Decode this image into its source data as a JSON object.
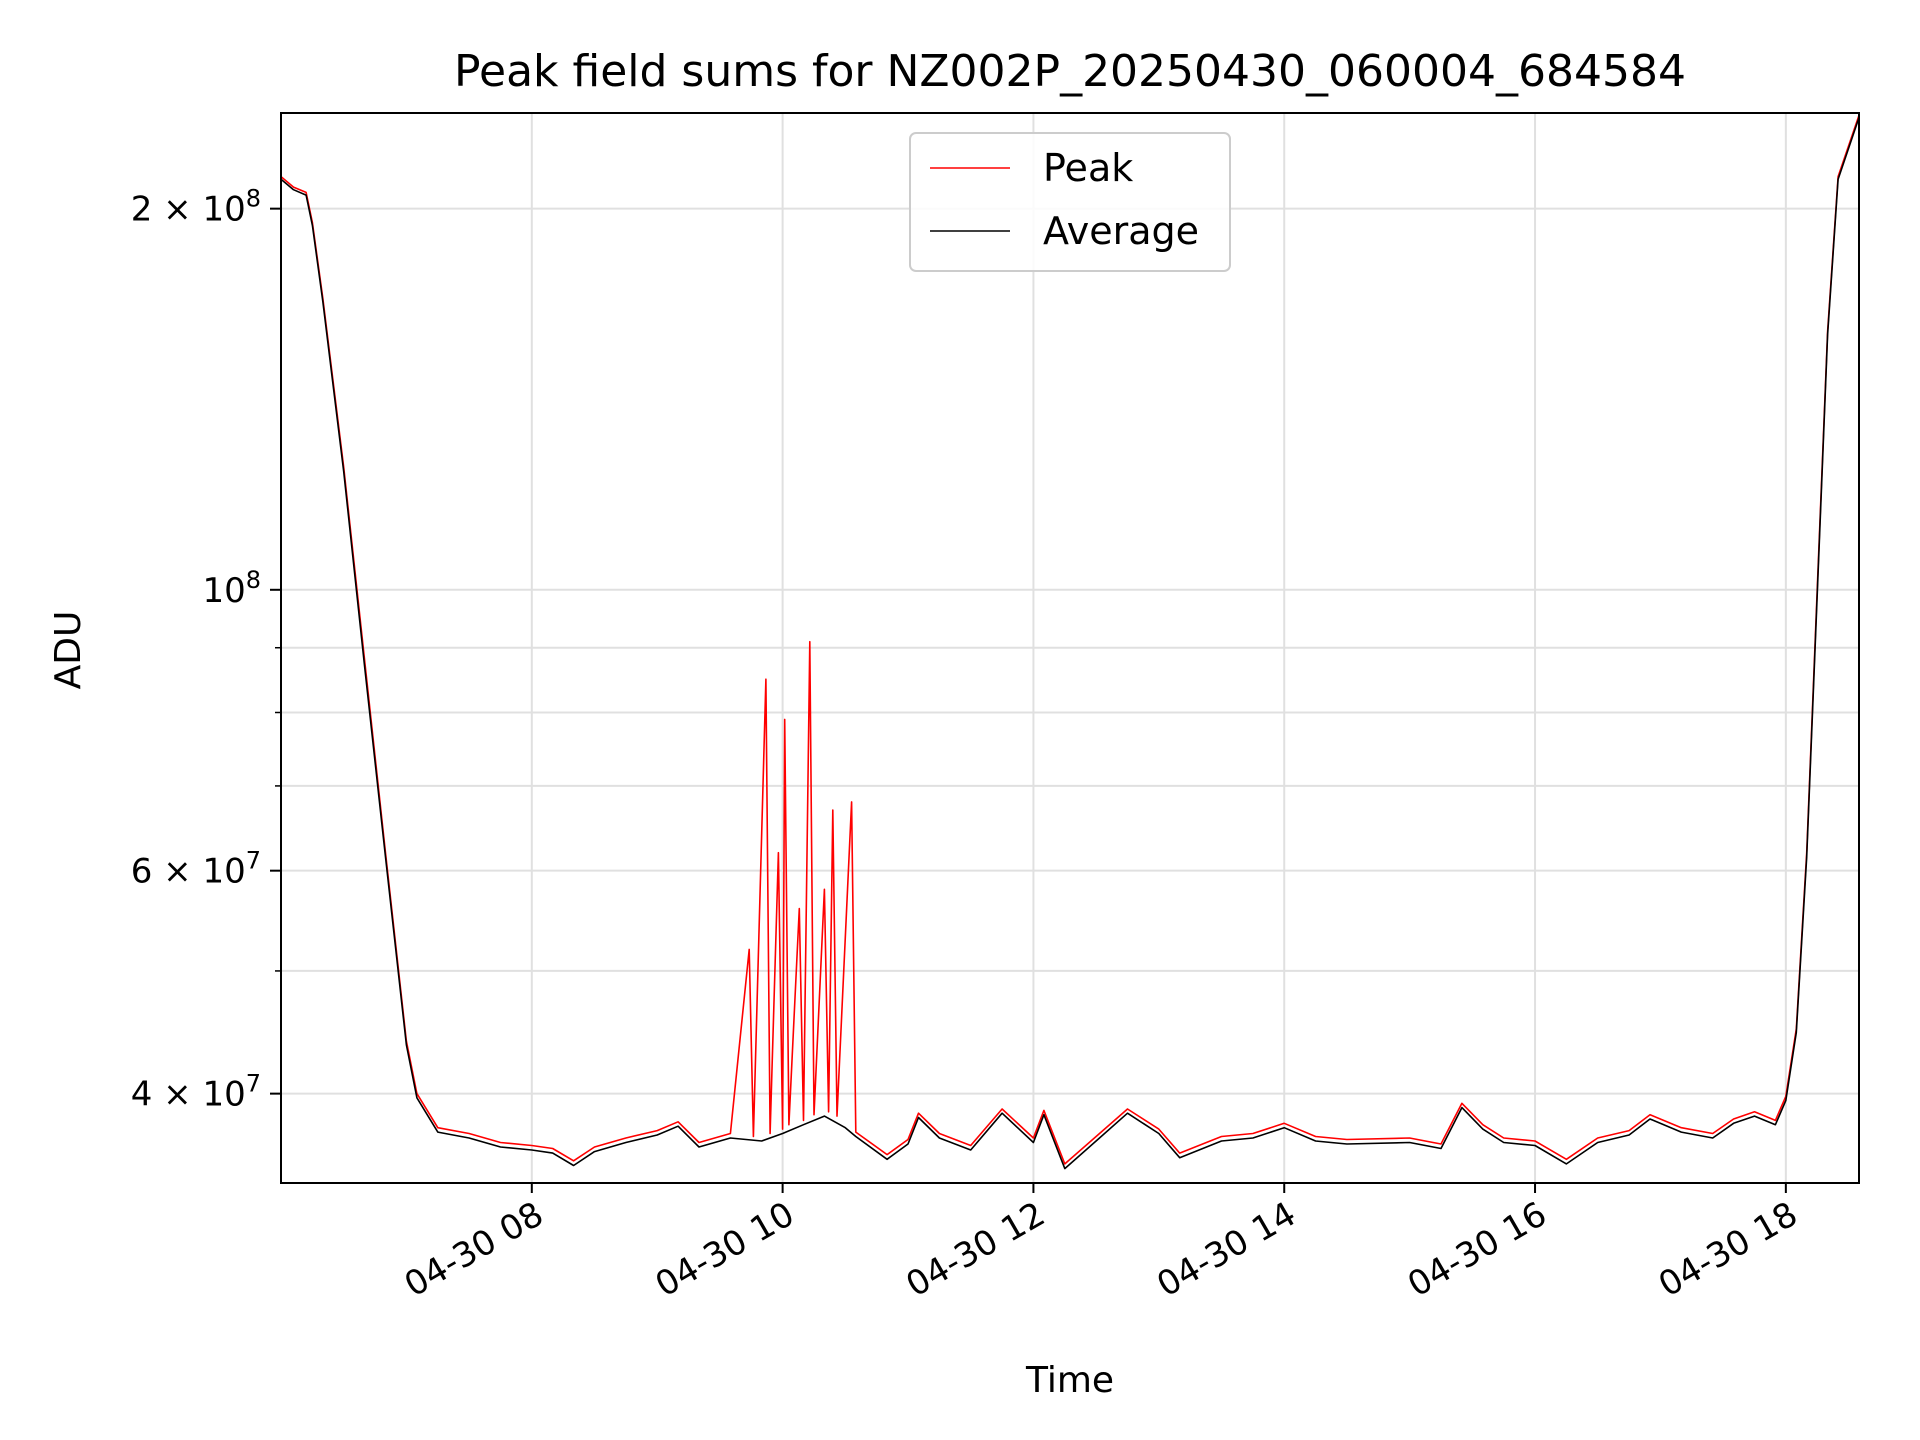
{
  "chart_data": {
    "type": "line",
    "title": "Peak field sums for NZ002P_20250430_060004_684584",
    "xlabel": "Time",
    "ylabel": "ADU",
    "yscale": "log",
    "grid": true,
    "legend_position": "top-center",
    "x_range": [
      "2025-04-30 06:00",
      "2025-04-30 18:35"
    ],
    "ylim": [
      34000000,
      238000000
    ],
    "x_ticks": [
      "04-30 08",
      "04-30 10",
      "04-30 12",
      "04-30 14",
      "04-30 16",
      "04-30 18"
    ],
    "y_tick_labels": [
      {
        "value": 200000000,
        "mantissa": "2",
        "exponent": "8"
      },
      {
        "value": 100000000,
        "mantissa": "",
        "exponent": "8"
      },
      {
        "value": 60000000,
        "mantissa": "6",
        "exponent": "7"
      },
      {
        "value": 40000000,
        "mantissa": "4",
        "exponent": "7"
      }
    ],
    "y_minor_ticks": [
      50000000,
      70000000,
      80000000,
      90000000
    ],
    "series": [
      {
        "name": "Peak",
        "color": "#ff0000",
        "points": [
          [
            "2025-04-30 06:00",
            212000000
          ],
          [
            "2025-04-30 06:06",
            208000000
          ],
          [
            "2025-04-30 06:12",
            206000000
          ],
          [
            "2025-04-30 06:15",
            195000000
          ],
          [
            "2025-04-30 06:20",
            170000000
          ],
          [
            "2025-04-30 06:30",
            125000000
          ],
          [
            "2025-04-30 06:40",
            88000000
          ],
          [
            "2025-04-30 06:50",
            62000000
          ],
          [
            "2025-04-30 07:00",
            44000000
          ],
          [
            "2025-04-30 07:05",
            40000000
          ],
          [
            "2025-04-30 07:15",
            37600000
          ],
          [
            "2025-04-30 07:30",
            37200000
          ],
          [
            "2025-04-30 07:45",
            36600000
          ],
          [
            "2025-04-30 08:00",
            36400000
          ],
          [
            "2025-04-30 08:10",
            36200000
          ],
          [
            "2025-04-30 08:20",
            35400000
          ],
          [
            "2025-04-30 08:30",
            36300000
          ],
          [
            "2025-04-30 08:45",
            36900000
          ],
          [
            "2025-04-30 09:00",
            37400000
          ],
          [
            "2025-04-30 09:10",
            38000000
          ],
          [
            "2025-04-30 09:20",
            36600000
          ],
          [
            "2025-04-30 09:35",
            37200000
          ],
          [
            "2025-04-30 09:44",
            52000000
          ],
          [
            "2025-04-30 09:46",
            37000000
          ],
          [
            "2025-04-30 09:52",
            85000000
          ],
          [
            "2025-04-30 09:54",
            37200000
          ],
          [
            "2025-04-30 09:58",
            62000000
          ],
          [
            "2025-04-30 10:00",
            37500000
          ],
          [
            "2025-04-30 10:01",
            79000000
          ],
          [
            "2025-04-30 10:03",
            37800000
          ],
          [
            "2025-04-30 10:08",
            56000000
          ],
          [
            "2025-04-30 10:10",
            38100000
          ],
          [
            "2025-04-30 10:13",
            91000000
          ],
          [
            "2025-04-30 10:15",
            38500000
          ],
          [
            "2025-04-30 10:20",
            58000000
          ],
          [
            "2025-04-30 10:22",
            38700000
          ],
          [
            "2025-04-30 10:24",
            67000000
          ],
          [
            "2025-04-30 10:26",
            38400000
          ],
          [
            "2025-04-30 10:33",
            68000000
          ],
          [
            "2025-04-30 10:35",
            37300000
          ],
          [
            "2025-04-30 10:50",
            35800000
          ],
          [
            "2025-04-30 11:00",
            36800000
          ],
          [
            "2025-04-30 11:05",
            38600000
          ],
          [
            "2025-04-30 11:15",
            37200000
          ],
          [
            "2025-04-30 11:30",
            36400000
          ],
          [
            "2025-04-30 11:45",
            38900000
          ],
          [
            "2025-04-30 12:00",
            36900000
          ],
          [
            "2025-04-30 12:05",
            38800000
          ],
          [
            "2025-04-30 12:15",
            35200000
          ],
          [
            "2025-04-30 12:30",
            37000000
          ],
          [
            "2025-04-30 12:45",
            38900000
          ],
          [
            "2025-04-30 13:00",
            37500000
          ],
          [
            "2025-04-30 13:10",
            35900000
          ],
          [
            "2025-04-30 13:30",
            37000000
          ],
          [
            "2025-04-30 13:45",
            37200000
          ],
          [
            "2025-04-30 14:00",
            37900000
          ],
          [
            "2025-04-30 14:15",
            37000000
          ],
          [
            "2025-04-30 14:30",
            36800000
          ],
          [
            "2025-04-30 15:00",
            36900000
          ],
          [
            "2025-04-30 15:15",
            36500000
          ],
          [
            "2025-04-30 15:25",
            39300000
          ],
          [
            "2025-04-30 15:35",
            37800000
          ],
          [
            "2025-04-30 15:45",
            36900000
          ],
          [
            "2025-04-30 16:00",
            36700000
          ],
          [
            "2025-04-30 16:15",
            35500000
          ],
          [
            "2025-04-30 16:30",
            36900000
          ],
          [
            "2025-04-30 16:45",
            37400000
          ],
          [
            "2025-04-30 16:55",
            38500000
          ],
          [
            "2025-04-30 17:10",
            37600000
          ],
          [
            "2025-04-30 17:25",
            37200000
          ],
          [
            "2025-04-30 17:35",
            38200000
          ],
          [
            "2025-04-30 17:45",
            38700000
          ],
          [
            "2025-04-30 17:55",
            38100000
          ],
          [
            "2025-04-30 18:00",
            39800000
          ],
          [
            "2025-04-30 18:05",
            45000000
          ],
          [
            "2025-04-30 18:10",
            62000000
          ],
          [
            "2025-04-30 18:15",
            100000000
          ],
          [
            "2025-04-30 18:20",
            160000000
          ],
          [
            "2025-04-30 18:25",
            212000000
          ],
          [
            "2025-04-30 18:35",
            237000000
          ]
        ]
      },
      {
        "name": "Average",
        "color": "#000000",
        "points": [
          [
            "2025-04-30 06:00",
            211000000
          ],
          [
            "2025-04-30 06:06",
            207000000
          ],
          [
            "2025-04-30 06:12",
            205000000
          ],
          [
            "2025-04-30 06:15",
            194000000
          ],
          [
            "2025-04-30 06:20",
            169000000
          ],
          [
            "2025-04-30 06:30",
            124000000
          ],
          [
            "2025-04-30 06:40",
            87000000
          ],
          [
            "2025-04-30 06:50",
            61500000
          ],
          [
            "2025-04-30 07:00",
            43700000
          ],
          [
            "2025-04-30 07:05",
            39700000
          ],
          [
            "2025-04-30 07:15",
            37300000
          ],
          [
            "2025-04-30 07:30",
            36900000
          ],
          [
            "2025-04-30 07:45",
            36300000
          ],
          [
            "2025-04-30 08:00",
            36100000
          ],
          [
            "2025-04-30 08:10",
            35900000
          ],
          [
            "2025-04-30 08:20",
            35100000
          ],
          [
            "2025-04-30 08:30",
            36000000
          ],
          [
            "2025-04-30 08:45",
            36600000
          ],
          [
            "2025-04-30 09:00",
            37100000
          ],
          [
            "2025-04-30 09:10",
            37700000
          ],
          [
            "2025-04-30 09:20",
            36300000
          ],
          [
            "2025-04-30 09:35",
            36900000
          ],
          [
            "2025-04-30 09:50",
            36700000
          ],
          [
            "2025-04-30 10:00",
            37200000
          ],
          [
            "2025-04-30 10:10",
            37800000
          ],
          [
            "2025-04-30 10:20",
            38400000
          ],
          [
            "2025-04-30 10:30",
            37600000
          ],
          [
            "2025-04-30 10:35",
            37000000
          ],
          [
            "2025-04-30 10:50",
            35500000
          ],
          [
            "2025-04-30 11:00",
            36500000
          ],
          [
            "2025-04-30 11:05",
            38300000
          ],
          [
            "2025-04-30 11:15",
            36900000
          ],
          [
            "2025-04-30 11:30",
            36100000
          ],
          [
            "2025-04-30 11:45",
            38600000
          ],
          [
            "2025-04-30 12:00",
            36600000
          ],
          [
            "2025-04-30 12:05",
            38500000
          ],
          [
            "2025-04-30 12:15",
            34900000
          ],
          [
            "2025-04-30 12:30",
            36700000
          ],
          [
            "2025-04-30 12:45",
            38600000
          ],
          [
            "2025-04-30 13:00",
            37200000
          ],
          [
            "2025-04-30 13:10",
            35600000
          ],
          [
            "2025-04-30 13:30",
            36700000
          ],
          [
            "2025-04-30 13:45",
            36900000
          ],
          [
            "2025-04-30 14:00",
            37600000
          ],
          [
            "2025-04-30 14:15",
            36700000
          ],
          [
            "2025-04-30 14:30",
            36500000
          ],
          [
            "2025-04-30 15:00",
            36600000
          ],
          [
            "2025-04-30 15:15",
            36200000
          ],
          [
            "2025-04-30 15:25",
            39000000
          ],
          [
            "2025-04-30 15:35",
            37500000
          ],
          [
            "2025-04-30 15:45",
            36600000
          ],
          [
            "2025-04-30 16:00",
            36400000
          ],
          [
            "2025-04-30 16:15",
            35200000
          ],
          [
            "2025-04-30 16:30",
            36600000
          ],
          [
            "2025-04-30 16:45",
            37100000
          ],
          [
            "2025-04-30 16:55",
            38200000
          ],
          [
            "2025-04-30 17:10",
            37300000
          ],
          [
            "2025-04-30 17:25",
            36900000
          ],
          [
            "2025-04-30 17:35",
            37900000
          ],
          [
            "2025-04-30 17:45",
            38400000
          ],
          [
            "2025-04-30 17:55",
            37800000
          ],
          [
            "2025-04-30 18:00",
            39500000
          ],
          [
            "2025-04-30 18:05",
            44700000
          ],
          [
            "2025-04-30 18:10",
            61500000
          ],
          [
            "2025-04-30 18:15",
            99000000
          ],
          [
            "2025-04-30 18:20",
            159000000
          ],
          [
            "2025-04-30 18:25",
            211000000
          ],
          [
            "2025-04-30 18:35",
            236000000
          ]
        ]
      }
    ]
  }
}
